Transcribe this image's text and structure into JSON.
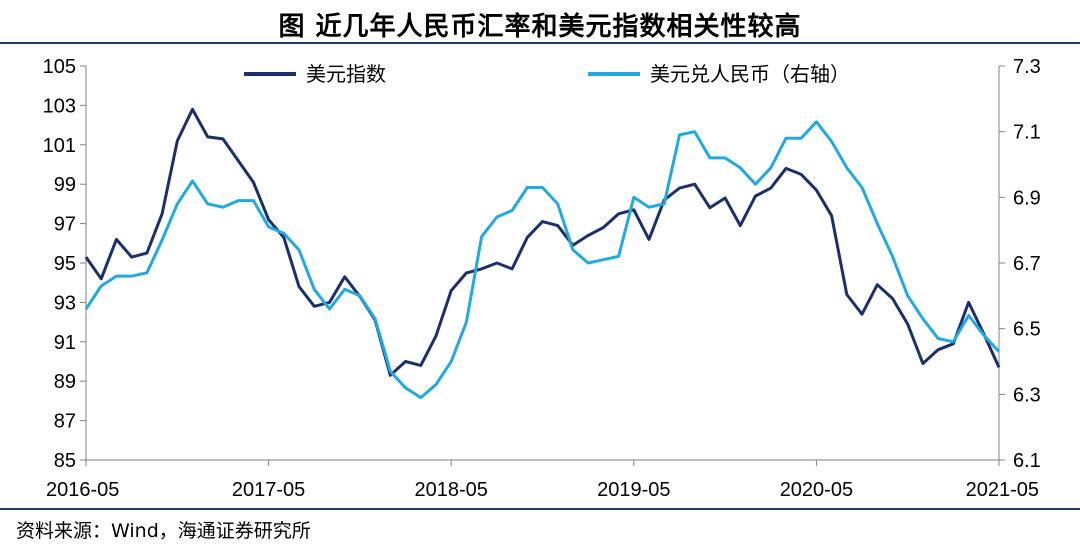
{
  "title": "图  近几年人民币汇率和美元指数相关性较高",
  "source": "资料来源：Wind，海通证券研究所",
  "colors": {
    "dxy": "#1a2f6b",
    "cny": "#21a9e1",
    "frame": "#1f3864"
  },
  "chart_data": {
    "type": "line",
    "x_tick_labels": [
      "2016-05",
      "2017-05",
      "2018-05",
      "2019-05",
      "2020-05",
      "2021-05"
    ],
    "x_range": [
      "2016-05",
      "2021-05"
    ],
    "y_left": {
      "ticks": [
        "105",
        "103",
        "101",
        "99",
        "97",
        "95",
        "93",
        "91",
        "89",
        "87",
        "85"
      ],
      "min": 85,
      "max": 105
    },
    "y_right": {
      "ticks": [
        "7.3",
        "7.1",
        "6.9",
        "6.7",
        "6.5",
        "6.3",
        "6.1"
      ],
      "min": 6.1,
      "max": 7.3
    },
    "legend": {
      "placement": "top",
      "items": [
        "美元指数",
        "美元兑人民币（右轴）"
      ]
    },
    "series": [
      {
        "name": "美元指数",
        "axis": "left",
        "color": "#1a2f6b",
        "x": [
          "2016-05",
          "2016-06",
          "2016-07",
          "2016-08",
          "2016-09",
          "2016-10",
          "2016-11",
          "2016-12",
          "2017-01",
          "2017-02",
          "2017-03",
          "2017-04",
          "2017-05",
          "2017-06",
          "2017-07",
          "2017-08",
          "2017-09",
          "2017-10",
          "2017-11",
          "2017-12",
          "2018-01",
          "2018-02",
          "2018-03",
          "2018-04",
          "2018-05",
          "2018-06",
          "2018-07",
          "2018-08",
          "2018-09",
          "2018-10",
          "2018-11",
          "2018-12",
          "2019-01",
          "2019-02",
          "2019-03",
          "2019-04",
          "2019-05",
          "2019-06",
          "2019-07",
          "2019-08",
          "2019-09",
          "2019-10",
          "2019-11",
          "2019-12",
          "2020-01",
          "2020-02",
          "2020-03",
          "2020-04",
          "2020-05",
          "2020-06",
          "2020-07",
          "2020-08",
          "2020-09",
          "2020-10",
          "2020-11",
          "2020-12",
          "2021-01",
          "2021-02",
          "2021-03",
          "2021-04",
          "2021-05"
        ],
        "values": [
          95.3,
          94.2,
          96.2,
          95.3,
          95.5,
          97.5,
          101.2,
          102.8,
          101.4,
          101.3,
          100.2,
          99.1,
          97.2,
          96.3,
          93.8,
          92.8,
          93.0,
          94.3,
          93.3,
          92.1,
          89.3,
          90.0,
          89.8,
          91.3,
          93.6,
          94.5,
          94.7,
          95.0,
          94.7,
          96.3,
          97.1,
          96.9,
          95.9,
          96.4,
          96.8,
          97.5,
          97.7,
          96.2,
          98.2,
          98.8,
          99.0,
          97.8,
          98.3,
          96.9,
          98.4,
          98.8,
          99.8,
          99.5,
          98.7,
          97.4,
          93.4,
          92.4,
          93.9,
          93.2,
          91.9,
          89.9,
          90.6,
          90.9,
          93.0,
          91.4,
          89.7
        ]
      },
      {
        "name": "美元兑人民币（右轴）",
        "axis": "right",
        "color": "#21a9e1",
        "x": [
          "2016-05",
          "2016-06",
          "2016-07",
          "2016-08",
          "2016-09",
          "2016-10",
          "2016-11",
          "2016-12",
          "2017-01",
          "2017-02",
          "2017-03",
          "2017-04",
          "2017-05",
          "2017-06",
          "2017-07",
          "2017-08",
          "2017-09",
          "2017-10",
          "2017-11",
          "2017-12",
          "2018-01",
          "2018-02",
          "2018-03",
          "2018-04",
          "2018-05",
          "2018-06",
          "2018-07",
          "2018-08",
          "2018-09",
          "2018-10",
          "2018-11",
          "2018-12",
          "2019-01",
          "2019-02",
          "2019-03",
          "2019-04",
          "2019-05",
          "2019-06",
          "2019-07",
          "2019-08",
          "2019-09",
          "2019-10",
          "2019-11",
          "2019-12",
          "2020-01",
          "2020-02",
          "2020-03",
          "2020-04",
          "2020-05",
          "2020-06",
          "2020-07",
          "2020-08",
          "2020-09",
          "2020-10",
          "2020-11",
          "2020-12",
          "2021-01",
          "2021-02",
          "2021-03",
          "2021-04",
          "2021-05"
        ],
        "values": [
          6.56,
          6.63,
          6.66,
          6.66,
          6.67,
          6.77,
          6.88,
          6.95,
          6.88,
          6.87,
          6.89,
          6.89,
          6.81,
          6.79,
          6.74,
          6.62,
          6.56,
          6.62,
          6.6,
          6.53,
          6.37,
          6.32,
          6.29,
          6.33,
          6.4,
          6.52,
          6.78,
          6.84,
          6.86,
          6.93,
          6.93,
          6.88,
          6.74,
          6.7,
          6.71,
          6.72,
          6.9,
          6.87,
          6.88,
          7.09,
          7.1,
          7.02,
          7.02,
          6.99,
          6.94,
          6.99,
          7.08,
          7.08,
          7.13,
          7.07,
          6.99,
          6.93,
          6.82,
          6.72,
          6.6,
          6.53,
          6.47,
          6.46,
          6.54,
          6.48,
          6.43
        ]
      }
    ]
  }
}
